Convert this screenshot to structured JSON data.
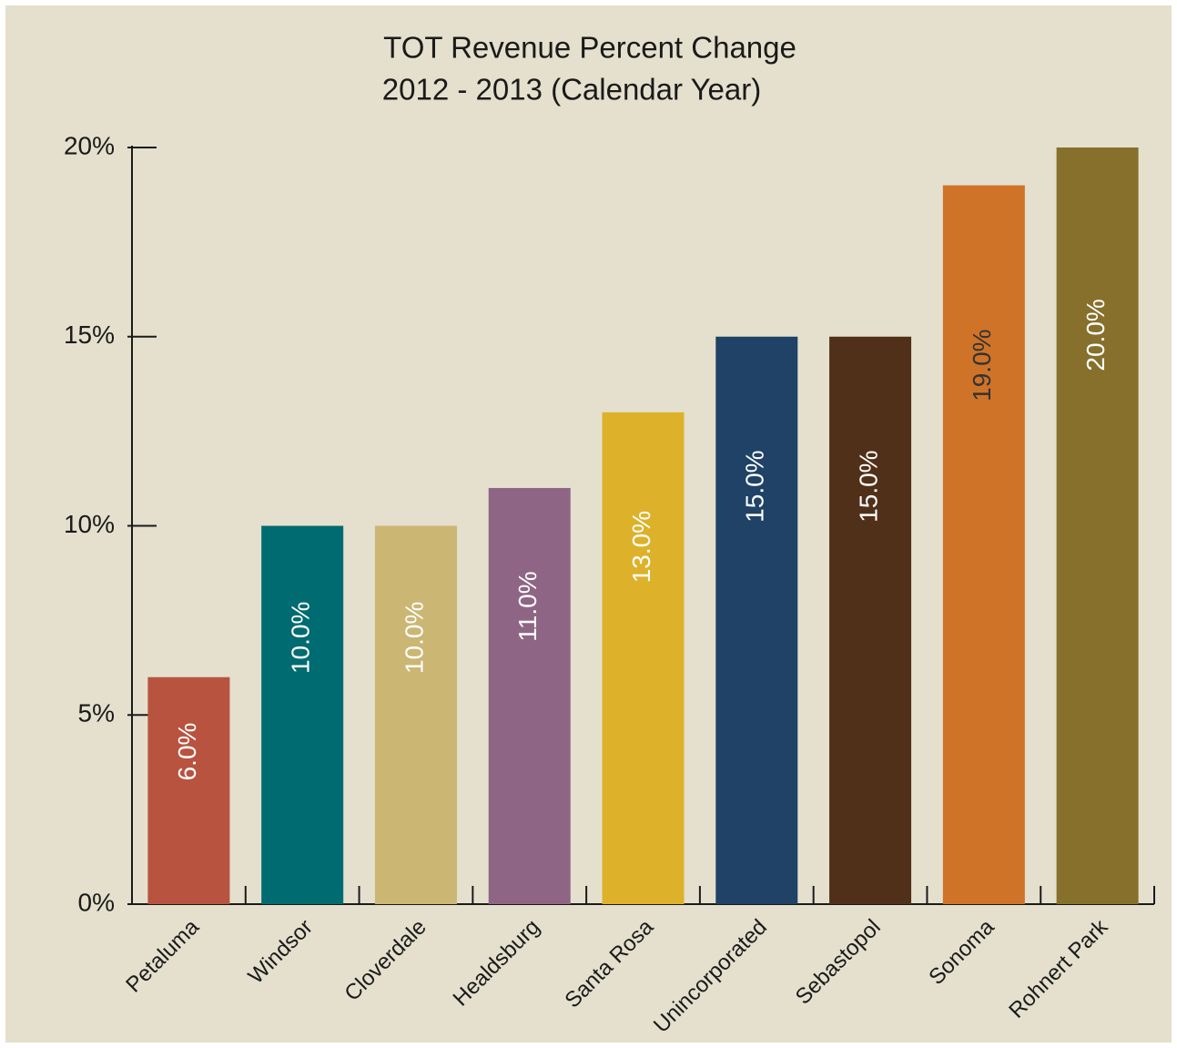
{
  "chart_data": {
    "type": "bar",
    "title": "TOT Revenue Percent Change",
    "subtitle": "2012 - 2013 (Calendar Year)",
    "categories": [
      "Petaluma",
      "Windsor",
      "Cloverdale",
      "Healdsburg",
      "Santa Rosa",
      "Unincorporated",
      "Sebastopol",
      "Sonoma",
      "Rohnert Park"
    ],
    "values": [
      6,
      10,
      10,
      11,
      13,
      15,
      15,
      19,
      20
    ],
    "value_labels": [
      "6.0%",
      "10.0%",
      "10.0%",
      "11.0%",
      "13.0%",
      "15.0%",
      "15.0%",
      "19.0%",
      "20.0%"
    ],
    "colors": [
      "#b85340",
      "#006b70",
      "#cbb673",
      "#8f6585",
      "#ddb22a",
      "#1f4266",
      "#51301a",
      "#cf7328",
      "#86702c"
    ],
    "value_label_colors": [
      "#ffffff",
      "#ffffff",
      "#ffffff",
      "#ffffff",
      "#ffffff",
      "#ffffff",
      "#ffffff",
      "#333333",
      "#ffffff"
    ],
    "ylim": [
      0,
      20
    ],
    "yticks": [
      {
        "value": 0,
        "label": "0%"
      },
      {
        "value": 5,
        "label": "5%"
      },
      {
        "value": 10,
        "label": "10%"
      },
      {
        "value": 15,
        "label": "15%"
      },
      {
        "value": 20,
        "label": "20%"
      }
    ],
    "grid": false
  }
}
